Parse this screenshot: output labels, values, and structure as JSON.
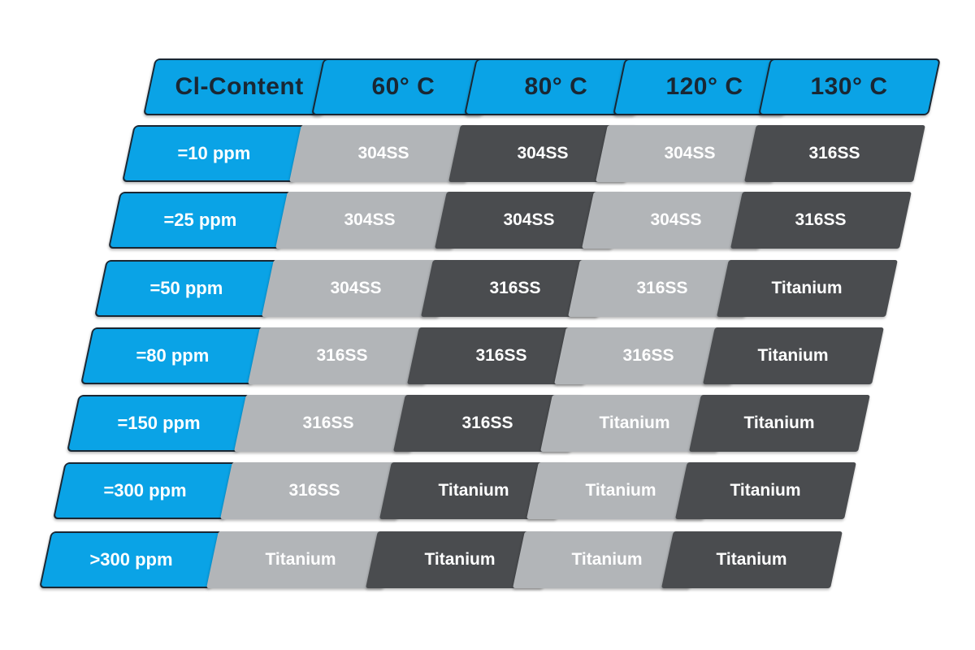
{
  "table": {
    "corner_label": "Cl-Content",
    "temperatures": [
      "60° C",
      "80° C",
      "120° C",
      "130° C"
    ],
    "rows": [
      {
        "label": "=10 ppm",
        "values": [
          "304SS",
          "304SS",
          "304SS",
          "316SS"
        ]
      },
      {
        "label": "=25 ppm",
        "values": [
          "304SS",
          "304SS",
          "304SS",
          "316SS"
        ]
      },
      {
        "label": "=50 ppm",
        "values": [
          "304SS",
          "316SS",
          "316SS",
          "Titanium"
        ]
      },
      {
        "label": "=80 ppm",
        "values": [
          "316SS",
          "316SS",
          "316SS",
          "Titanium"
        ]
      },
      {
        "label": "=150 ppm",
        "values": [
          "316SS",
          "316SS",
          "Titanium",
          "Titanium"
        ]
      },
      {
        "label": "=300 ppm",
        "values": [
          "316SS",
          "Titanium",
          "Titanium",
          "Titanium"
        ]
      },
      {
        "label": ">300 ppm",
        "values": [
          "Titanium",
          "Titanium",
          "Titanium",
          "Titanium"
        ]
      }
    ]
  },
  "colors": {
    "header_blue": "#0aa3e6",
    "light_gray": "#b2b5b8",
    "dark_gray": "#4a4c4f",
    "outline": "#1a2733"
  }
}
